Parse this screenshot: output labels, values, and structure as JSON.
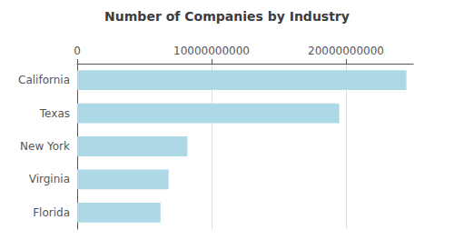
{
  "chart_data": {
    "type": "bar",
    "orientation": "horizontal",
    "title": "Number of Companies by Industry",
    "categories": [
      "California",
      "Texas",
      "New York",
      "Virginia",
      "Florida"
    ],
    "values": [
      24500000000,
      19500000000,
      8200000000,
      6800000000,
      6200000000
    ],
    "color": "#ADD8E6",
    "xlim": [
      0,
      25000000000
    ],
    "xticks": [
      0,
      10000000000,
      20000000000
    ],
    "grid": true
  }
}
